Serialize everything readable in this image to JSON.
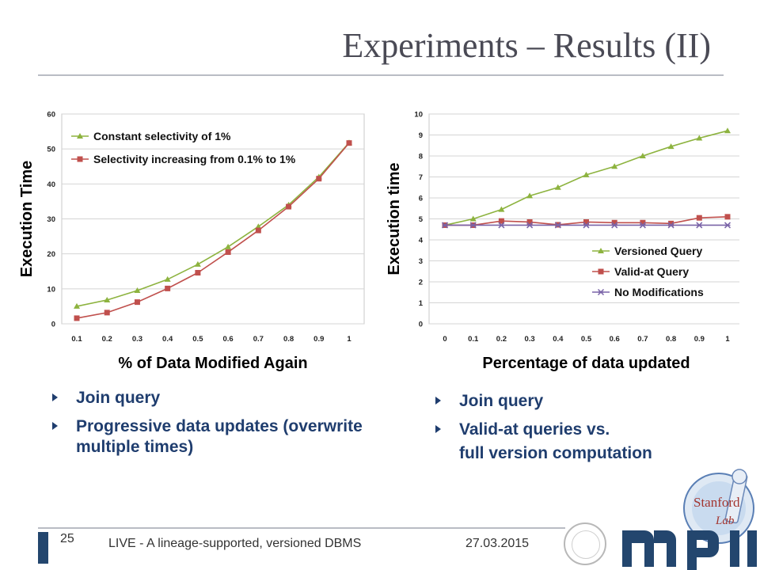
{
  "title": "Experiments – Results (II)",
  "left_bullets": [
    "Join query",
    "Progressive data updates (overwrite multiple times)"
  ],
  "right_bullets": [
    "Join query",
    "Valid-at queries vs."
  ],
  "right_bullet_cont": "full version computation",
  "footer": {
    "page": "25",
    "talk": "LIVE - A lineage-supported, versioned DBMS",
    "date": "27.03.2015"
  },
  "logos": {
    "lab_line1": "Stanford",
    "lab_line2": "Lab"
  },
  "colors": {
    "green": "#8db33f",
    "red": "#c0504d",
    "purple": "#7a64a8",
    "bullet": "#1f3d6e",
    "footer_bar": "#23466e"
  },
  "chart_data": [
    {
      "type": "line",
      "x": [
        0.1,
        0.2,
        0.3,
        0.4,
        0.5,
        0.6,
        0.7,
        0.8,
        0.9,
        1
      ],
      "xtick_labels": [
        "0.1",
        "0.2",
        "0.3",
        "0.4",
        "0.5",
        "0.6",
        "0.7",
        "0.8",
        "0.9",
        "1"
      ],
      "xlabel": "% of Data Modified Again",
      "ylabel": "Execution Time",
      "ylim": [
        0,
        60
      ],
      "yticks": [
        0,
        10,
        20,
        30,
        40,
        50,
        60
      ],
      "grid": "horizontal",
      "legend": "top-left",
      "series": [
        {
          "name": "Constant selectivity of 1%",
          "color": "#8db33f",
          "marker": "triangle",
          "values": [
            5,
            6.8,
            9.5,
            12.7,
            17,
            22,
            27.8,
            34,
            42,
            51.8
          ]
        },
        {
          "name": "Selectivity increasing from 0.1% to 1%",
          "color": "#c0504d",
          "marker": "square",
          "values": [
            1.6,
            3.2,
            6.2,
            10.1,
            14.6,
            20.5,
            26.7,
            33.5,
            41.5,
            51.7
          ]
        }
      ]
    },
    {
      "type": "line",
      "x": [
        0,
        0.1,
        0.2,
        0.3,
        0.4,
        0.5,
        0.6,
        0.7,
        0.8,
        0.9,
        1
      ],
      "xtick_labels": [
        "0",
        "0.1",
        "0.2",
        "0.3",
        "0.4",
        "0.5",
        "0.6",
        "0.7",
        "0.8",
        "0.9",
        "1"
      ],
      "xlabel": "Percentage of data updated",
      "ylabel": "Execution time",
      "ylim": [
        0,
        10
      ],
      "yticks": [
        0,
        1,
        2,
        3,
        4,
        5,
        6,
        7,
        8,
        9,
        10
      ],
      "grid": "horizontal",
      "legend": "bottom-right",
      "series": [
        {
          "name": "Versioned Query",
          "color": "#8db33f",
          "marker": "triangle",
          "values": [
            4.7,
            5,
            5.45,
            6.1,
            6.5,
            7.1,
            7.5,
            8,
            8.45,
            8.85,
            9.2
          ]
        },
        {
          "name": "Valid-at Query",
          "color": "#c0504d",
          "marker": "square",
          "values": [
            4.7,
            4.7,
            4.9,
            4.85,
            4.72,
            4.85,
            4.82,
            4.82,
            4.78,
            5.05,
            5.1
          ]
        },
        {
          "name": "No Modifications",
          "color": "#7a64a8",
          "marker": "star",
          "values": [
            4.7,
            4.7,
            4.7,
            4.7,
            4.7,
            4.7,
            4.7,
            4.7,
            4.7,
            4.7,
            4.7
          ]
        }
      ]
    }
  ]
}
